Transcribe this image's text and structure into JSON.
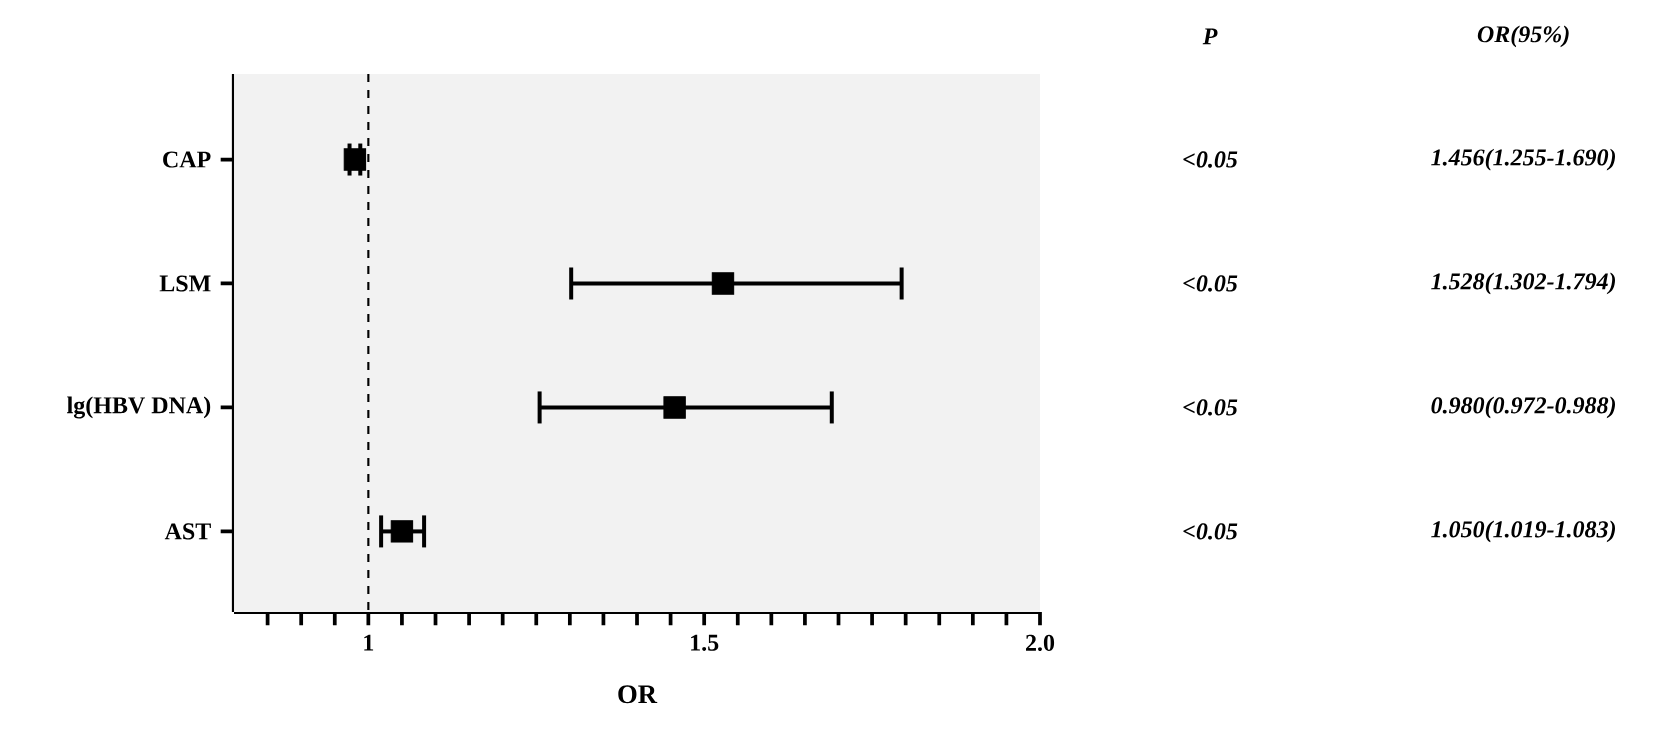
{
  "chart_data": {
    "type": "scatter",
    "orientation": "horizontal",
    "xlabel": "OR",
    "categories": [
      "CAP",
      "LSM",
      "lg(HBV DNA)",
      "AST"
    ],
    "values": [
      0.98,
      1.528,
      1.456,
      1.05
    ],
    "errors": [
      [
        0.972,
        0.988
      ],
      [
        1.302,
        1.794
      ],
      [
        1.255,
        1.69
      ],
      [
        1.019,
        1.083
      ]
    ],
    "color": "#000000",
    "marker": "square",
    "xlim": [
      0.8,
      2.0
    ],
    "xticks": [
      {
        "value": 0.85,
        "label": null
      },
      {
        "value": 0.9,
        "label": null
      },
      {
        "value": 0.95,
        "label": null
      },
      1,
      {
        "value": 1.05,
        "label": null
      },
      {
        "value": 1.1,
        "label": null
      },
      {
        "value": 1.15,
        "label": null
      },
      {
        "value": 1.2,
        "label": null
      },
      {
        "value": 1.25,
        "label": null
      },
      {
        "value": 1.3,
        "label": null
      },
      {
        "value": 1.35,
        "label": null
      },
      {
        "value": 1.4,
        "label": null
      },
      {
        "value": 1.45,
        "label": null
      },
      1.5,
      {
        "value": 1.55,
        "label": null
      },
      {
        "value": 1.6,
        "label": null
      },
      {
        "value": 1.65,
        "label": null
      },
      {
        "value": 1.7,
        "label": null
      },
      {
        "value": 1.75,
        "label": null
      },
      {
        "value": 1.8,
        "label": null
      },
      {
        "value": 1.85,
        "label": null
      },
      {
        "value": 1.9,
        "label": null
      },
      {
        "value": 1.95,
        "label": null
      },
      {
        "value": 2.0,
        "label": "2.0"
      }
    ],
    "ref_lines": [
      {
        "axis": "x",
        "value": 1,
        "line_style": "dashed",
        "color": "#000000"
      }
    ],
    "annotations": [
      "P",
      "OR(95%)",
      "<0.05",
      "1.456(1.255-1.690)",
      "<0.05",
      "1.528(1.302-1.794)",
      "<0.05",
      "0.980(0.972-0.988)",
      "<0.05",
      "1.050(1.019-1.083)"
    ]
  }
}
